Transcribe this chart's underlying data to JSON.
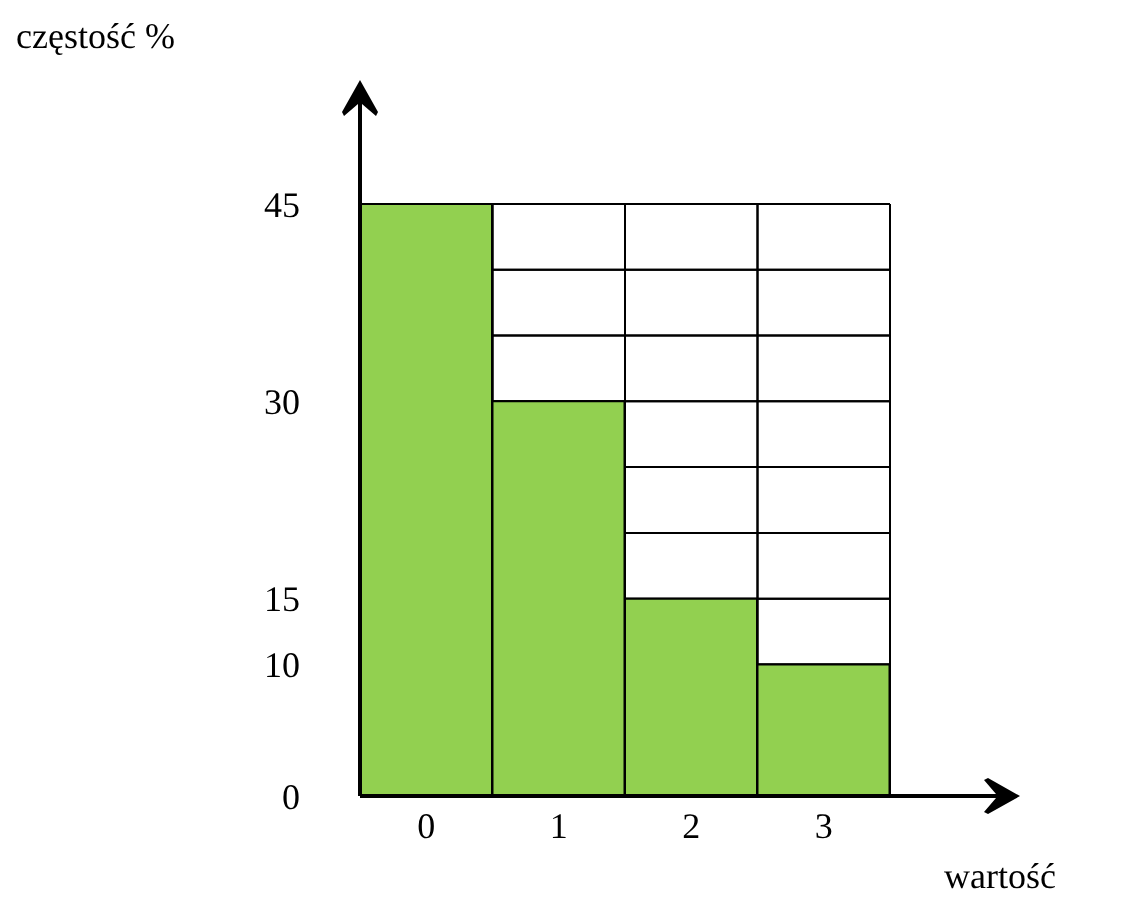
{
  "chart_data": {
    "type": "bar",
    "xlabel": "wartość",
    "ylabel": "częstość %",
    "categories": [
      "0",
      "1",
      "2",
      "3"
    ],
    "values": [
      45,
      30,
      15,
      10
    ],
    "color": "#92d050",
    "ylim": [
      0,
      45
    ],
    "yticks": [
      0,
      {
        "value": 5,
        "label": null
      },
      10,
      15,
      {
        "value": 20,
        "label": null
      },
      {
        "value": 25,
        "label": null
      },
      30,
      {
        "value": 35,
        "label": null
      },
      {
        "value": 40,
        "label": null
      },
      45
    ],
    "grid": true
  }
}
